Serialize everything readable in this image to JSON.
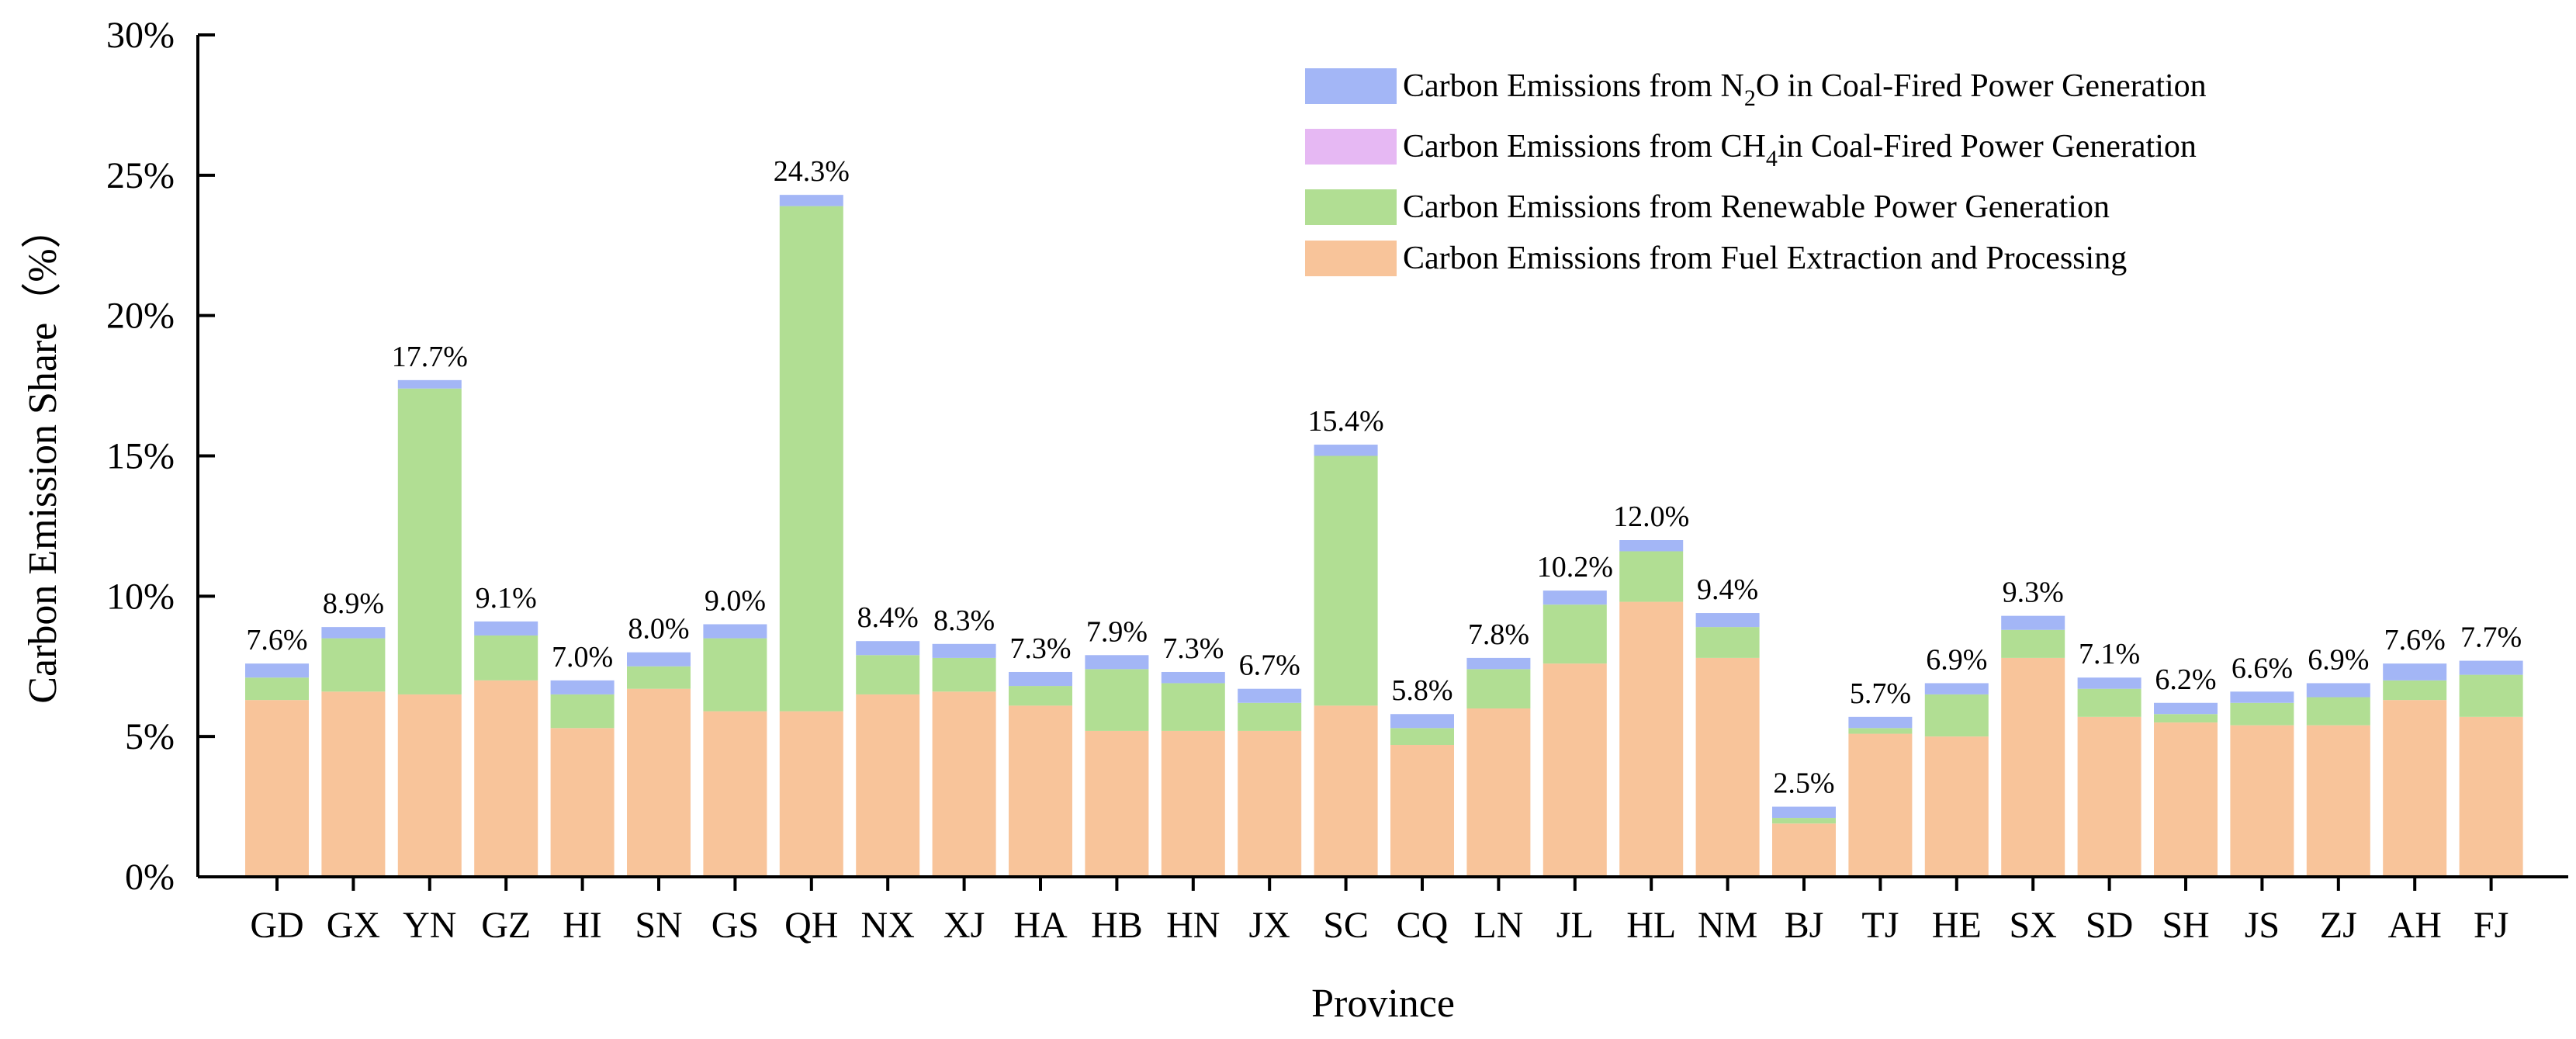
{
  "chart_data": {
    "type": "bar",
    "stacked": true,
    "xlabel": "Province",
    "ylabel": "Carbon Emission Share（%）",
    "ylim": [
      0,
      30
    ],
    "yticks": [
      0,
      5,
      10,
      15,
      20,
      25,
      30
    ],
    "ytick_labels": [
      "0%",
      "5%",
      "10%",
      "15%",
      "20%",
      "25%",
      "30%"
    ],
    "legend_position": "top-right",
    "categories": [
      "GD",
      "GX",
      "YN",
      "GZ",
      "HI",
      "SN",
      "GS",
      "QH",
      "NX",
      "XJ",
      "HA",
      "HB",
      "HN",
      "JX",
      "SC",
      "CQ",
      "LN",
      "JL",
      "HL",
      "NM",
      "BJ",
      "TJ",
      "HE",
      "SX",
      "SD",
      "SH",
      "JS",
      "ZJ",
      "AH",
      "FJ"
    ],
    "series": [
      {
        "name": "Carbon Emissions from Fuel Extraction and Processing",
        "color": "#F8C49A",
        "values": [
          6.3,
          6.6,
          6.5,
          7.0,
          5.3,
          6.7,
          5.9,
          5.9,
          6.5,
          6.6,
          6.1,
          5.2,
          5.2,
          5.2,
          6.1,
          4.7,
          6.0,
          7.6,
          9.8,
          7.8,
          1.9,
          5.1,
          5.0,
          7.8,
          5.7,
          5.5,
          5.4,
          5.4,
          6.3,
          5.7
        ]
      },
      {
        "name": "Carbon Emissions from Renewable Power Generation",
        "color": "#B1DE93",
        "values": [
          0.8,
          1.9,
          10.9,
          1.6,
          1.2,
          0.8,
          2.6,
          18.0,
          1.4,
          1.2,
          0.7,
          2.2,
          1.7,
          1.0,
          8.9,
          0.6,
          1.4,
          2.1,
          1.8,
          1.1,
          0.2,
          0.2,
          1.5,
          1.0,
          1.0,
          0.3,
          0.8,
          1.0,
          0.7,
          1.5
        ]
      },
      {
        "name": "Carbon Emissions from CH4in Coal-Fired Power Generation",
        "color": "#E6B8F3",
        "values": [
          0,
          0,
          0,
          0,
          0,
          0,
          0,
          0,
          0,
          0,
          0,
          0,
          0,
          0,
          0,
          0,
          0,
          0,
          0,
          0,
          0,
          0,
          0,
          0,
          0,
          0,
          0,
          0,
          0,
          0
        ]
      },
      {
        "name": "Carbon Emissions from N2O in Coal-Fired Power Generation",
        "color": "#A3B6F6",
        "values": [
          0.5,
          0.4,
          0.3,
          0.5,
          0.5,
          0.5,
          0.5,
          0.4,
          0.5,
          0.5,
          0.5,
          0.5,
          0.4,
          0.5,
          0.4,
          0.5,
          0.4,
          0.5,
          0.4,
          0.5,
          0.4,
          0.4,
          0.4,
          0.5,
          0.4,
          0.4,
          0.4,
          0.5,
          0.6,
          0.5
        ]
      }
    ],
    "totals": [
      7.6,
      8.9,
      17.7,
      9.1,
      7.0,
      8.0,
      9.0,
      24.3,
      8.4,
      8.3,
      7.3,
      7.9,
      7.3,
      6.7,
      15.4,
      5.8,
      7.8,
      10.2,
      12.0,
      9.4,
      2.5,
      5.7,
      6.9,
      9.3,
      7.1,
      6.2,
      6.6,
      6.9,
      7.6,
      7.7
    ],
    "total_labels": [
      "7.6%",
      "8.9%",
      "17.7%",
      "9.1%",
      "7.0%",
      "8.0%",
      "9.0%",
      "24.3%",
      "8.4%",
      "8.3%",
      "7.3%",
      "7.9%",
      "7.3%",
      "6.7%",
      "15.4%",
      "5.8%",
      "7.8%",
      "10.2%",
      "12.0%",
      "9.4%",
      "2.5%",
      "5.7%",
      "6.9%",
      "9.3%",
      "7.1%",
      "6.2%",
      "6.6%",
      "6.9%",
      "7.6%",
      "7.7%"
    ],
    "legend": [
      {
        "color": "#A3B6F6",
        "pre": "Carbon Emissions from N",
        "sub": "2",
        "post": "O in Coal-Fired Power Generation"
      },
      {
        "color": "#E6B8F3",
        "pre": "Carbon Emissions from CH",
        "sub": "4",
        "post": "in Coal-Fired Power Generation"
      },
      {
        "color": "#B1DE93",
        "pre": "Carbon Emissions from Renewable Power Generation",
        "sub": "",
        "post": ""
      },
      {
        "color": "#F8C49A",
        "pre": "Carbon Emissions from Fuel Extraction and Processing",
        "sub": "",
        "post": ""
      }
    ]
  }
}
